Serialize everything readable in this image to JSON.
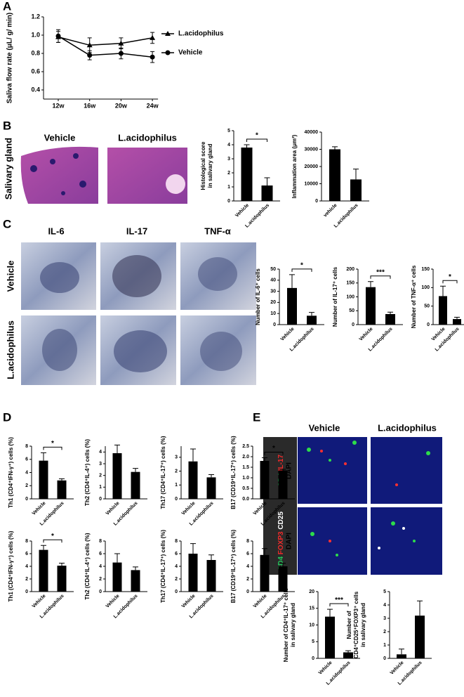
{
  "labels": [
    "A",
    "B",
    "C",
    "D",
    "E"
  ],
  "b_images": {
    "side": "Salivary gland",
    "columns": [
      "Vehicle",
      "L.acidophilus"
    ]
  },
  "c_images": {
    "columns": [
      "IL-6",
      "IL-17",
      "TNF-α"
    ],
    "rows": [
      "Vehicle",
      "L.acidophilus"
    ]
  },
  "e_images": {
    "columns": [
      "Vehicle",
      "L.acidophilus"
    ],
    "rows": [
      [
        "CD4",
        "IL-17",
        "DAPI"
      ],
      [
        "CD4",
        "FOXP3",
        "CD25",
        "DAPI"
      ]
    ]
  },
  "chart_data": [
    {
      "type": "line",
      "ylabel": "Saliva flow rate (μL/ g/ min)",
      "categories": [
        "12w",
        "16w",
        "20w",
        "24w"
      ],
      "series": [
        {
          "name": "L.acidophilus",
          "marker": "triangle",
          "color": "#000000",
          "values": [
            0.98,
            0.89,
            0.91,
            0.97
          ],
          "errors": [
            0.06,
            0.08,
            0.06,
            0.06
          ]
        },
        {
          "name": "Vehicle",
          "marker": "circle",
          "color": "#000000",
          "values": [
            0.99,
            0.78,
            0.8,
            0.76
          ],
          "errors": [
            0.07,
            0.05,
            0.06,
            0.06
          ]
        }
      ],
      "ylim": [
        0.3,
        1.2
      ],
      "yticks": [
        0.4,
        0.6,
        0.8,
        {
          "value": 1,
          "label": "1.0"
        },
        1.2
      ]
    },
    {
      "type": "bar",
      "title": [
        "Histological score",
        "in salivary gland"
      ],
      "categories": [
        "Vehicle",
        "L.acidophilus"
      ],
      "values": [
        3.8,
        1.1
      ],
      "errors": [
        0.2,
        0.55
      ],
      "ylim": [
        0,
        5
      ],
      "yticks": [
        0,
        1,
        2,
        3,
        4,
        5
      ],
      "color": "#000000",
      "significance": "*"
    },
    {
      "type": "bar",
      "title": [
        "Inflammation area (μm²)"
      ],
      "categories": [
        "vehicle",
        "L.acidophilus"
      ],
      "values": [
        30000,
        12500
      ],
      "errors": [
        1500,
        6000
      ],
      "ylim": [
        0,
        40000
      ],
      "yticks": [
        0,
        10000,
        20000,
        30000,
        40000
      ],
      "color": "#000000"
    },
    {
      "type": "bar",
      "title": [
        "Number of IL-6⁺ cells"
      ],
      "categories": [
        "Vehicle",
        "L.acidophilus"
      ],
      "values": [
        33,
        8
      ],
      "errors": [
        12,
        3
      ],
      "ylim": [
        0,
        50
      ],
      "yticks": [
        0,
        10,
        20,
        30,
        40,
        50
      ],
      "color": "#000000",
      "significance": "*"
    },
    {
      "type": "bar",
      "title": [
        "Number of IL-17⁺ cells"
      ],
      "categories": [
        "Vehicle",
        "L.acidophilus"
      ],
      "values": [
        135,
        38
      ],
      "errors": [
        20,
        7
      ],
      "ylim": [
        0,
        200
      ],
      "yticks": [
        0,
        50,
        100,
        150,
        200
      ],
      "color": "#000000",
      "significance": "***"
    },
    {
      "type": "bar",
      "title": [
        "Number of TNF-α⁺ cells"
      ],
      "categories": [
        "Vehicle",
        "L.acidophilus"
      ],
      "values": [
        77,
        15
      ],
      "errors": [
        27,
        5
      ],
      "ylim": [
        0,
        150
      ],
      "yticks": [
        0,
        50,
        100,
        150
      ],
      "color": "#000000",
      "significance": "*"
    },
    {
      "type": "bar",
      "title": [
        "Th1 (CD4⁺IFN-γ⁺) cells (%)"
      ],
      "categories": [
        "Vehicle",
        "L.acidophilus"
      ],
      "values": [
        5.8,
        2.8
      ],
      "errors": [
        1.2,
        0.25
      ],
      "ylim": [
        0,
        8
      ],
      "yticks": [
        0,
        2,
        4,
        6,
        8
      ],
      "color": "#000000",
      "significance": "*"
    },
    {
      "type": "bar",
      "title": [
        "Th2 (CD4⁺IL-4⁺) cells (%)"
      ],
      "categories": [
        "Vehicle",
        "L.acidophilus"
      ],
      "values": [
        3.9,
        2.3
      ],
      "errors": [
        0.7,
        0.3
      ],
      "ylim": [
        0,
        4.5
      ],
      "yticks": [
        0,
        1,
        2,
        3,
        4
      ],
      "color": "#000000"
    },
    {
      "type": "bar",
      "title": [
        "Th17 (CD4⁺IL-17⁺) cells (%)"
      ],
      "categories": [
        "Vehicle",
        "L.acidophilus"
      ],
      "values": [
        2.7,
        1.55
      ],
      "errors": [
        0.9,
        0.2
      ],
      "ylim": [
        0,
        3.8
      ],
      "yticks": [
        0,
        1,
        2,
        3
      ],
      "color": "#000000"
    },
    {
      "type": "bar",
      "title": [
        "B17 (CD19⁺IL-17⁺) cells (%)"
      ],
      "categories": [
        "Vehicle",
        "L.acidophilus"
      ],
      "values": [
        1.8,
        1.35
      ],
      "errors": [
        0.15,
        0.05
      ],
      "ylim": [
        0,
        2.5
      ],
      "yticks": [
        {
          "value": 0,
          "label": "0.0"
        },
        0.5,
        {
          "value": 1,
          "label": "1.0"
        },
        1.5,
        {
          "value": 2,
          "label": "2.0"
        },
        2.5
      ],
      "color": "#000000",
      "significance": "*"
    },
    {
      "type": "bar",
      "title": [
        "Th1 (CD4⁺IFN-γ⁺) cells (%)"
      ],
      "categories": [
        "Vehicle",
        "L.acidophilus"
      ],
      "values": [
        6.6,
        4.1
      ],
      "errors": [
        0.7,
        0.4
      ],
      "ylim": [
        0,
        8
      ],
      "yticks": [
        0,
        2,
        4,
        6,
        8
      ],
      "color": "#000000",
      "significance": "*"
    },
    {
      "type": "bar",
      "title": [
        "Th2 (CD4⁺IL-4⁺) cells (%)"
      ],
      "categories": [
        "Vehicle",
        "L.acidophilus"
      ],
      "values": [
        4.6,
        3.4
      ],
      "errors": [
        1.4,
        0.5
      ],
      "ylim": [
        0,
        8
      ],
      "yticks": [
        0,
        2,
        4,
        6,
        8
      ],
      "color": "#000000"
    },
    {
      "type": "bar",
      "title": [
        "Th17 (CD4⁺IL-17⁺) cells (%)"
      ],
      "categories": [
        "Vehicle",
        "L.acidophilus"
      ],
      "values": [
        6.0,
        5.0
      ],
      "errors": [
        1.6,
        0.8
      ],
      "ylim": [
        0,
        8
      ],
      "yticks": [
        0,
        2,
        4,
        6,
        8
      ],
      "color": "#000000"
    },
    {
      "type": "bar",
      "title": [
        "B17 (CD19⁺IL-17⁺) cells (%)"
      ],
      "categories": [
        "Vehicle",
        "L.acidophilus"
      ],
      "values": [
        5.8,
        4.0
      ],
      "errors": [
        1.0,
        0.5
      ],
      "ylim": [
        0,
        8
      ],
      "yticks": [
        0,
        2,
        4,
        6,
        8
      ],
      "color": "#000000"
    },
    {
      "type": "bar",
      "title": [
        "Number of CD4⁺IL-17⁺ cells",
        "in salivary gland"
      ],
      "categories": [
        "Vehicle",
        "L.acidophilus"
      ],
      "values": [
        12.5,
        1.8
      ],
      "errors": [
        2.2,
        0.5
      ],
      "ylim": [
        0,
        20
      ],
      "yticks": [
        0,
        5,
        10,
        15,
        20
      ],
      "color": "#000000",
      "significance": "***"
    },
    {
      "type": "bar",
      "title": [
        "Number of",
        "CD4⁺CD25⁺FOXP3⁺ cells",
        "in salivary gland"
      ],
      "categories": [
        "Vehicle",
        "L.acidophilus"
      ],
      "values": [
        0.3,
        3.2
      ],
      "errors": [
        0.4,
        1.1
      ],
      "ylim": [
        0,
        5
      ],
      "yticks": [
        0,
        1,
        2,
        3,
        4,
        5
      ],
      "color": "#000000"
    }
  ]
}
